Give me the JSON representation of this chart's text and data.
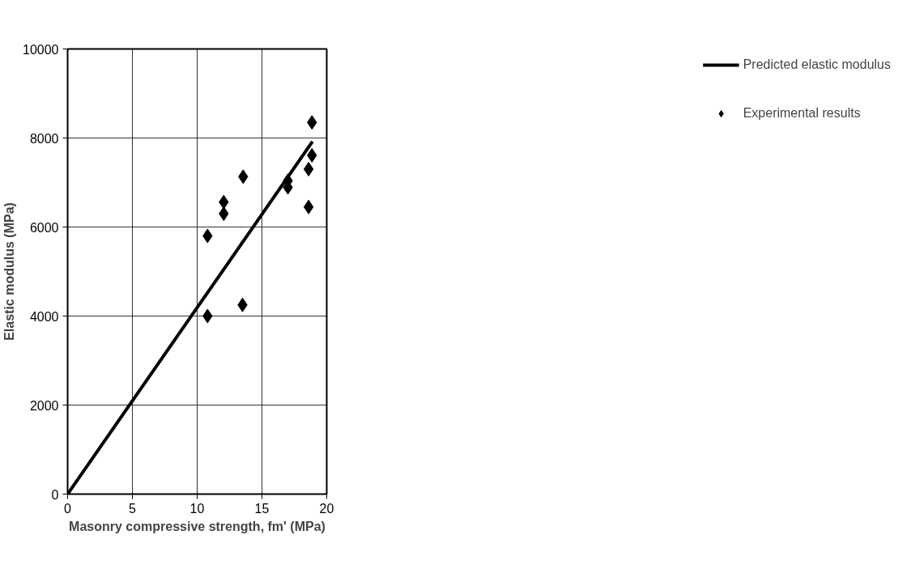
{
  "chart_data": {
    "type": "scatter",
    "xlabel": "Masonry compressive strength, fm' (MPa)",
    "ylabel": "Elastic modulus (MPa)",
    "xlim": [
      0,
      20
    ],
    "xticks": [
      0,
      5,
      10,
      15,
      20
    ],
    "ylim": [
      0,
      10000
    ],
    "yticks": [
      0,
      2000,
      4000,
      6000,
      8000,
      10000
    ],
    "grid": true,
    "legend": "right",
    "series": [
      {
        "name": "Predicted elastic modulus",
        "type": "line",
        "color": "#000000",
        "line_style": "solid",
        "marker": "none",
        "x": [
          0,
          18.9
        ],
        "values": [
          0,
          7920
        ]
      },
      {
        "name": "Experimental results",
        "color": "#000000",
        "marker": "diamond",
        "x": [
          10.8,
          10.8,
          12.05,
          12.05,
          13.55,
          13.5,
          17.0,
          17.0,
          18.86,
          18.86,
          18.6,
          18.6
        ],
        "values": [
          5800,
          4000,
          6560,
          6300,
          7130,
          4250,
          7040,
          6890,
          8350,
          7610,
          7300,
          6450
        ]
      }
    ]
  }
}
